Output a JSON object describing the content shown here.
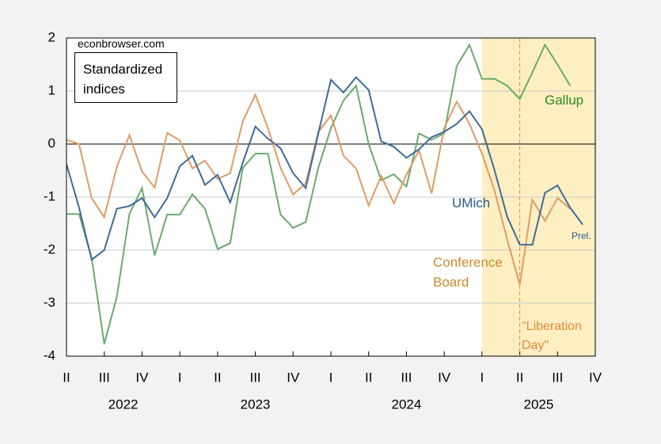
{
  "chart_data": {
    "type": "line",
    "source": "econbrowser.com",
    "box_text": "Standardized indices",
    "x": [
      2022.25,
      2022.3333,
      2022.4167,
      2022.5,
      2022.5833,
      2022.6667,
      2022.75,
      2022.8333,
      2022.9167,
      2023,
      2023.0833,
      2023.1667,
      2023.25,
      2023.3333,
      2023.4167,
      2023.5,
      2023.5833,
      2023.6667,
      2023.75,
      2023.8333,
      2023.9167,
      2024,
      2024.0833,
      2024.1667,
      2024.25,
      2024.3333,
      2024.4167,
      2024.5,
      2024.5833,
      2024.6667,
      2024.75,
      2024.8333,
      2024.9167,
      2025,
      2025.0833,
      2025.1667,
      2025.25,
      2025.3333,
      2025.4167,
      2025.5,
      2025.5833,
      2025.6667
    ],
    "series": [
      {
        "name": "Gallup",
        "color": "#6aaa6e",
        "label_color": "#2e8a22",
        "values": [
          -1.32,
          -1.32,
          -2.15,
          -3.77,
          -2.88,
          -1.32,
          -0.83,
          -2.1,
          -1.33,
          -1.33,
          -0.95,
          -1.22,
          -1.98,
          -1.87,
          -0.45,
          -0.18,
          -0.18,
          -1.33,
          -1.58,
          -1.47,
          -0.45,
          0.3,
          0.82,
          1.1,
          0.0,
          -0.68,
          -0.57,
          -0.8,
          0.2,
          0.08,
          0.2,
          1.47,
          1.87,
          1.23,
          1.23,
          1.1,
          0.85,
          1.35,
          1.87,
          1.5,
          1.1,
          null
        ]
      },
      {
        "name": "Conference Board",
        "color": "#e29a66",
        "label_color": "#c98a2a",
        "values": [
          0.08,
          0.0,
          -1.02,
          -1.38,
          -0.43,
          0.17,
          -0.52,
          -0.82,
          0.21,
          0.07,
          -0.46,
          -0.31,
          -0.66,
          -0.55,
          0.43,
          0.93,
          0.3,
          -0.45,
          -0.95,
          -0.74,
          0.23,
          0.54,
          -0.22,
          -0.46,
          -1.16,
          -0.6,
          -1.12,
          -0.58,
          -0.12,
          -0.93,
          0.3,
          0.8,
          0.38,
          -0.18,
          -0.88,
          -1.8,
          -2.65,
          -1.05,
          -1.45,
          -1.02,
          -1.22,
          null
        ]
      },
      {
        "name": "UMich",
        "color": "#3d6b98",
        "label_color": "#2c5a8c",
        "values": [
          -0.38,
          -1.2,
          -2.18,
          -2.0,
          -1.22,
          -1.17,
          -1.02,
          -1.38,
          -1.02,
          -0.42,
          -0.22,
          -0.77,
          -0.58,
          -1.1,
          -0.35,
          0.33,
          0.1,
          -0.08,
          -0.55,
          -0.83,
          0.2,
          1.21,
          0.97,
          1.26,
          1.02,
          0.05,
          -0.05,
          -0.26,
          -0.1,
          0.13,
          0.23,
          0.38,
          0.62,
          0.28,
          -0.5,
          -1.37,
          -1.9,
          -1.9,
          -0.92,
          -0.78,
          -1.2,
          -1.52
        ]
      }
    ],
    "prelim_label": "Prel.",
    "shaded_region": [
      2025,
      2025.75
    ],
    "shade_color": "#fdefc2",
    "event_line": {
      "x": 2025.25,
      "label": "\"Liberation Day\"",
      "color": "#e08a3c"
    },
    "xlim": [
      2022.25,
      2025.75
    ],
    "xticks": [
      {
        "value": 2022.25,
        "label": "II"
      },
      {
        "value": 2022.5,
        "label": "III"
      },
      {
        "value": 2022.75,
        "label": "IV"
      },
      {
        "value": 2023,
        "label": "I"
      },
      {
        "value": 2023.25,
        "label": "II"
      },
      {
        "value": 2023.5,
        "label": "III"
      },
      {
        "value": 2023.75,
        "label": "IV"
      },
      {
        "value": 2024,
        "label": "I"
      },
      {
        "value": 2024.25,
        "label": "II"
      },
      {
        "value": 2024.5,
        "label": "III"
      },
      {
        "value": 2024.75,
        "label": "IV"
      },
      {
        "value": 2025,
        "label": "I"
      },
      {
        "value": 2025.25,
        "label": "II"
      },
      {
        "value": 2025.5,
        "label": "III"
      },
      {
        "value": 2025.75,
        "label": "IV"
      }
    ],
    "year_labels": [
      {
        "value": 2022.625,
        "label": "2022"
      },
      {
        "value": 2023.5,
        "label": "2023"
      },
      {
        "value": 2024.5,
        "label": "2024"
      },
      {
        "value": 2025.375,
        "label": "2025"
      }
    ],
    "ylim": [
      -4,
      2
    ],
    "yticks": [
      -4,
      -3,
      -2,
      -1,
      0,
      1,
      2
    ],
    "grid": true
  }
}
